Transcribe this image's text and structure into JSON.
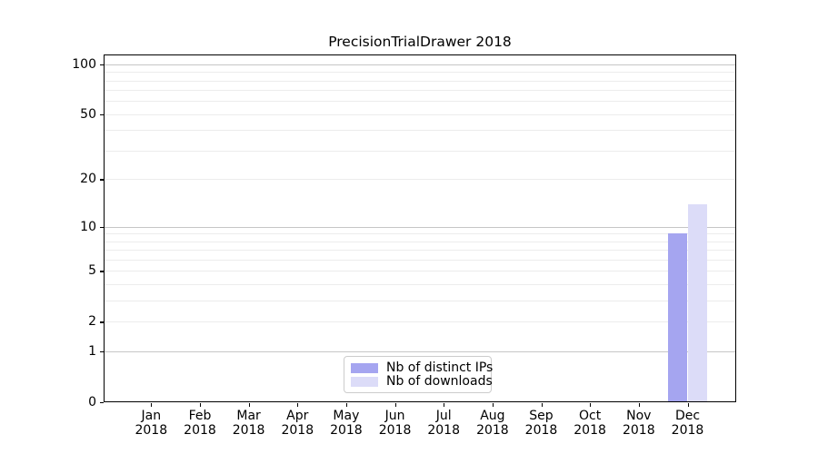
{
  "chart_data": {
    "type": "bar",
    "title": "PrecisionTrialDrawer 2018",
    "categories": [
      "Jan 2018",
      "Feb 2018",
      "Mar 2018",
      "Apr 2018",
      "May 2018",
      "Jun 2018",
      "Jul 2018",
      "Aug 2018",
      "Sep 2018",
      "Oct 2018",
      "Nov 2018",
      "Dec 2018"
    ],
    "series": [
      {
        "name": "Nb of distinct IPs",
        "color": "#a5a5f0",
        "values": [
          0,
          0,
          0,
          0,
          0,
          0,
          0,
          0,
          0,
          0,
          0,
          9
        ]
      },
      {
        "name": "Nb of downloads",
        "color": "#dcdcf8",
        "values": [
          0,
          0,
          0,
          0,
          0,
          0,
          0,
          0,
          0,
          0,
          0,
          14
        ]
      }
    ],
    "xlabel": "",
    "ylabel": "",
    "yscale": "log1p",
    "yticks": [
      0,
      1,
      2,
      5,
      10,
      20,
      50,
      100
    ],
    "major_grid_values": [
      1,
      10,
      100
    ],
    "ylim": [
      0,
      115
    ],
    "grid": true,
    "legend_position": "lower center",
    "colors": {
      "background": "#ffffff",
      "spine": "#000000",
      "major_grid": "#c6c6c6",
      "minor_grid": "#ececec",
      "text": "#000000"
    }
  }
}
